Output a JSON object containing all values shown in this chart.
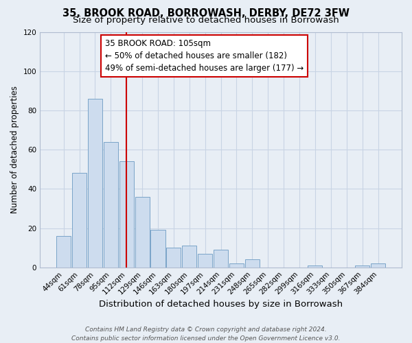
{
  "title": "35, BROOK ROAD, BORROWASH, DERBY, DE72 3FW",
  "subtitle": "Size of property relative to detached houses in Borrowash",
  "xlabel": "Distribution of detached houses by size in Borrowash",
  "ylabel": "Number of detached properties",
  "bar_labels": [
    "44sqm",
    "61sqm",
    "78sqm",
    "95sqm",
    "112sqm",
    "129sqm",
    "146sqm",
    "163sqm",
    "180sqm",
    "197sqm",
    "214sqm",
    "231sqm",
    "248sqm",
    "265sqm",
    "282sqm",
    "299sqm",
    "316sqm",
    "333sqm",
    "350sqm",
    "367sqm",
    "384sqm"
  ],
  "bar_values": [
    16,
    48,
    86,
    64,
    54,
    36,
    19,
    10,
    11,
    7,
    9,
    2,
    4,
    0,
    0,
    0,
    1,
    0,
    0,
    1,
    2
  ],
  "bar_color": "#cddcee",
  "bar_edge_color": "#7aa4c8",
  "annotation_title": "35 BROOK ROAD: 105sqm",
  "annotation_line1": "← 50% of detached houses are smaller (182)",
  "annotation_line2": "49% of semi-detached houses are larger (177) →",
  "annotation_box_color": "#ffffff",
  "annotation_box_edge_color": "#cc0000",
  "ylim": [
    0,
    120
  ],
  "yticks": [
    0,
    20,
    40,
    60,
    80,
    100,
    120
  ],
  "grid_color": "#c8d4e4",
  "bg_color": "#e8eef5",
  "plot_bg_color": "#e8eef5",
  "footer_line1": "Contains HM Land Registry data © Crown copyright and database right 2024.",
  "footer_line2": "Contains public sector information licensed under the Open Government Licence v3.0.",
  "vertical_line_x": 4.0,
  "title_fontsize": 10.5,
  "subtitle_fontsize": 9.5,
  "xlabel_fontsize": 9.5,
  "ylabel_fontsize": 8.5,
  "tick_fontsize": 7.5,
  "annotation_fontsize": 8.5,
  "footer_fontsize": 6.5
}
